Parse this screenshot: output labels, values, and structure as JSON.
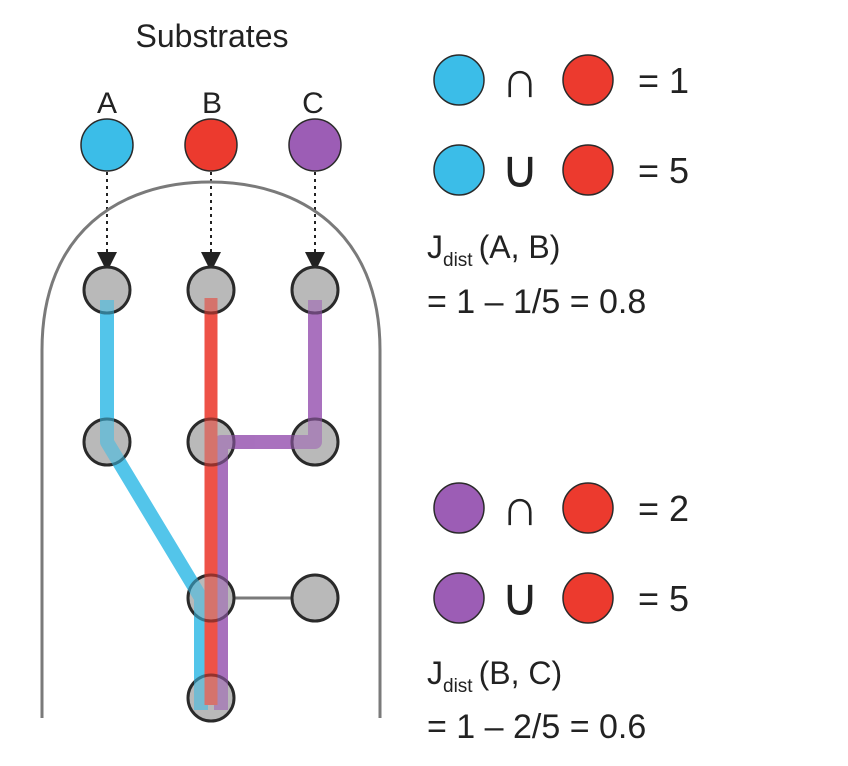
{
  "title": "Substrates",
  "colors": {
    "A": "#3bbde8",
    "B": "#ec3a2e",
    "C": "#9c5db5",
    "node_fill": "#b9b9b9",
    "node_stroke": "#2a2a2a",
    "enclosure": "#7a7a7a"
  },
  "substrates": [
    {
      "key": "A",
      "label": "A"
    },
    {
      "key": "B",
      "label": "B"
    },
    {
      "key": "C",
      "label": "C"
    }
  ],
  "comparisons": [
    {
      "intersection": {
        "left": "A",
        "operator": "∩",
        "right": "B",
        "value": "= 1"
      },
      "union": {
        "left": "A",
        "operator": "∪",
        "right": "B",
        "value": "= 5"
      },
      "jdist": {
        "symbol": "J",
        "subscript": "dist",
        "args": "(A, B)",
        "formula": "= 1 – 1/5 = 0.8"
      }
    },
    {
      "intersection": {
        "left": "C",
        "operator": "∩",
        "right": "B",
        "value": "= 2"
      },
      "union": {
        "left": "C",
        "operator": "∪",
        "right": "B",
        "value": "= 5"
      },
      "jdist": {
        "symbol": "J",
        "subscript": "dist",
        "args": "(B, C)",
        "formula": "= 1 – 2/5 = 0.6"
      }
    }
  ]
}
